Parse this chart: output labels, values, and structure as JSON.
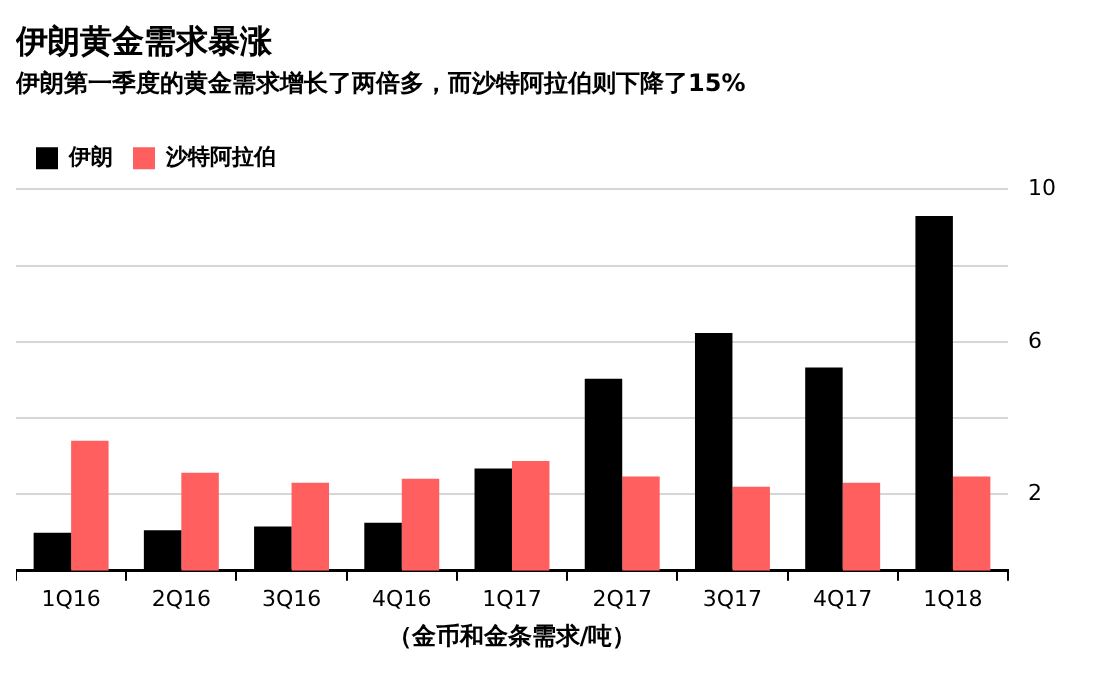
{
  "chart_data": {
    "type": "bar",
    "title": "伊朗黄金需求暴涨",
    "subtitle": "伊朗第一季度的黄金需求增长了两倍多，而沙特阿拉伯则下降了15%",
    "xlabel": "（金币和金条需求/吨）",
    "categories": [
      "1Q16",
      "2Q16",
      "3Q16",
      "4Q16",
      "1Q17",
      "2Q17",
      "3Q17",
      "4Q17",
      "1Q18"
    ],
    "series": [
      {
        "name": "伊朗",
        "color": "#000000",
        "values": [
          1.0,
          1.06,
          1.16,
          1.26,
          2.68,
          5.03,
          6.23,
          5.33,
          9.3
        ]
      },
      {
        "name": "沙特阿拉伯",
        "color": "#ff5f5f",
        "values": [
          3.41,
          2.57,
          2.31,
          2.41,
          2.88,
          2.47,
          2.2,
          2.31,
          2.47
        ]
      }
    ],
    "ylim": [
      0,
      10
    ],
    "yticks": [
      2,
      {
        "value": 4,
        "label": null
      },
      6,
      {
        "value": 8,
        "label": null
      },
      10
    ],
    "grid": "y",
    "legend": "top left"
  }
}
